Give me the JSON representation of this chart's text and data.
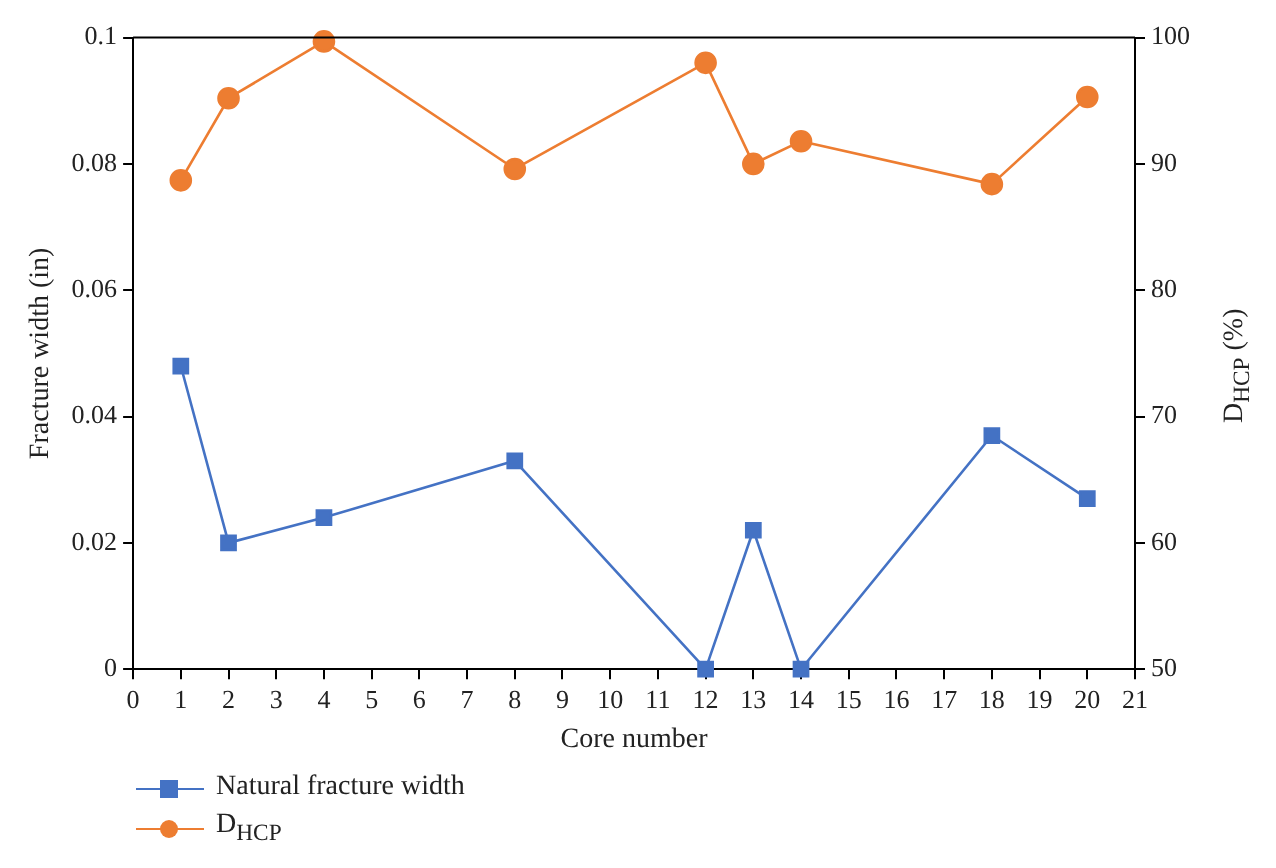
{
  "chart_data": {
    "type": "line",
    "xlabel": "Core number",
    "ylabel": "Fracture width (in)",
    "y2label": "D$_{HCP}$ (%)",
    "x": [
      1,
      2,
      4,
      8,
      12,
      13,
      14,
      18,
      20
    ],
    "xlim": [
      0,
      21
    ],
    "xticks": [
      0,
      1,
      2,
      3,
      4,
      5,
      6,
      7,
      8,
      9,
      10,
      11,
      12,
      13,
      14,
      15,
      16,
      17,
      18,
      19,
      20,
      21
    ],
    "ylim": [
      0,
      0.1
    ],
    "yticks": [
      0,
      0.02,
      0.04,
      0.06,
      0.08,
      0.1
    ],
    "y2lim": [
      50,
      100
    ],
    "y2ticks": [
      50,
      60,
      70,
      80,
      90,
      100
    ],
    "grid": false,
    "legend": "bottom left",
    "line_style": "solid",
    "series": [
      {
        "name": "Natural fracture width",
        "color": "#4472c4",
        "marker": "square",
        "values": [
          0.048,
          0.02,
          0.024,
          0.033,
          0,
          0.022,
          0,
          0.037,
          0.027
        ]
      },
      {
        "name": "D$_{HCP}$",
        "color": "#ed7d31",
        "marker": "circle",
        "axis": "y2",
        "values": [
          88.7,
          95.2,
          99.7,
          89.6,
          98.0,
          90.0,
          91.8,
          88.4,
          95.3
        ]
      }
    ]
  }
}
